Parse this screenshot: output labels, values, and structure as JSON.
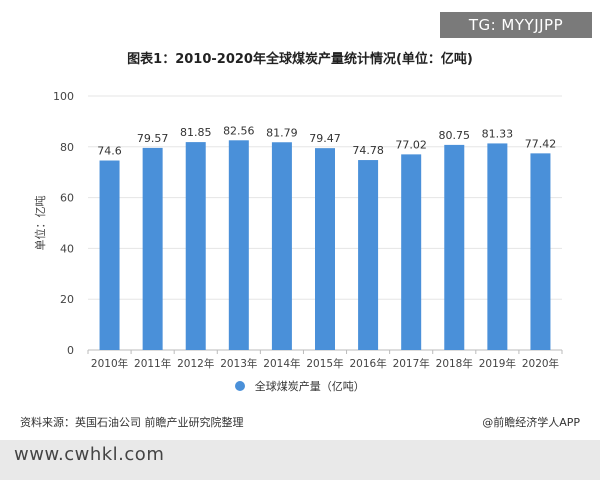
{
  "watermark": "TG: MYYJJPP",
  "footer": {
    "source": "资料来源：英国石油公司 前瞻产业研究院整理",
    "brand": "@前瞻经济学人APP",
    "url": "www.cwhkl.com"
  },
  "chart_data": {
    "type": "bar",
    "title": "图表1：2010-2020年全球煤炭产量统计情况(单位：亿吨)",
    "ylabel": "单位：亿吨",
    "xlabel": "",
    "categories": [
      "2010年",
      "2011年",
      "2012年",
      "2013年",
      "2014年",
      "2015年",
      "2016年",
      "2017年",
      "2018年",
      "2019年",
      "2020年"
    ],
    "series": [
      {
        "name": "全球煤炭产量（亿吨）",
        "values": [
          74.6,
          79.57,
          81.85,
          82.56,
          81.79,
          79.47,
          74.78,
          77.02,
          80.75,
          81.33,
          77.42
        ]
      }
    ],
    "ylim": [
      0,
      100
    ],
    "yticks": [
      0,
      20,
      40,
      60,
      80,
      100
    ],
    "grid": true,
    "legend": "bottom",
    "colors": {
      "bar": "#4a90d9",
      "grid": "#e5e5e5",
      "axis": "#bbbbbb"
    }
  }
}
